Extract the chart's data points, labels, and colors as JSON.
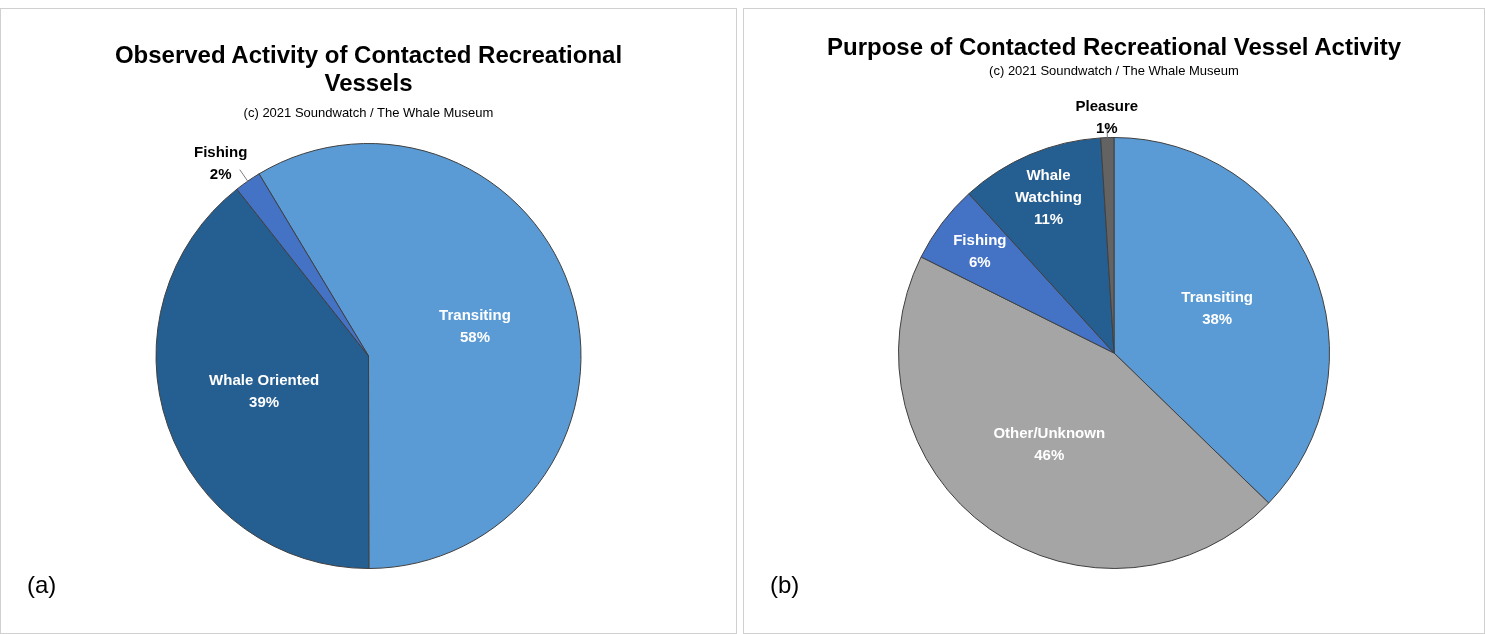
{
  "chart_data": [
    {
      "type": "pie",
      "title": "Observed Activity of Contacted Recreational Vessels",
      "subtitle": "(c) 2021 Soundwatch / The Whale Museum",
      "categories": [
        "Transiting",
        "Whale Oriented",
        "Fishing"
      ],
      "values": [
        58,
        39,
        2
      ],
      "value_labels": [
        "58%",
        "39%",
        "2%"
      ],
      "colors": [
        "#5b9bd5",
        "#255e91",
        "#4472c4"
      ],
      "legend": false,
      "annotations": [
        "(a)"
      ]
    },
    {
      "type": "pie",
      "title": "Purpose of Contacted Recreational Vessel Activity",
      "subtitle": "(c) 2021 Soundwatch / The Whale Museum",
      "categories": [
        "Transiting",
        "Other/Unknown",
        "Fishing",
        "Whale Watching",
        "Pleasure"
      ],
      "values": [
        38,
        46,
        6,
        11,
        1
      ],
      "value_labels": [
        "38%",
        "46%",
        "6%",
        "11%",
        "1%"
      ],
      "colors": [
        "#5b9bd5",
        "#a5a5a5",
        "#4472c4",
        "#255e91",
        "#636363"
      ],
      "legend": false,
      "annotations": [
        "(b)"
      ]
    }
  ]
}
